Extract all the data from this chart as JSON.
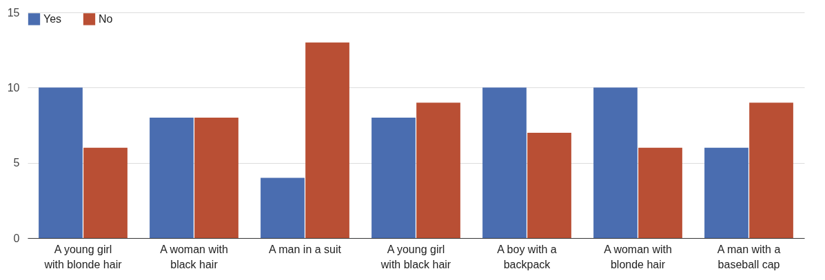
{
  "chart_data": {
    "type": "bar",
    "categories": [
      "A young girl with blonde hair",
      "A woman with black hair",
      "A man in a suit",
      "A young girl with black hair",
      "A boy with a backpack",
      "A woman with blonde hair",
      "A man with a baseball cap"
    ],
    "series": [
      {
        "name": "Yes",
        "color": "#4a6db0",
        "values": [
          10,
          8,
          4,
          8,
          10,
          10,
          6
        ]
      },
      {
        "name": "No",
        "color": "#b94f34",
        "values": [
          6,
          8,
          13,
          9,
          7,
          6,
          9
        ]
      }
    ],
    "ylim": [
      0,
      15
    ],
    "yticks": [
      0,
      5,
      10,
      15
    ],
    "grid": "y",
    "legend": "top left"
  }
}
